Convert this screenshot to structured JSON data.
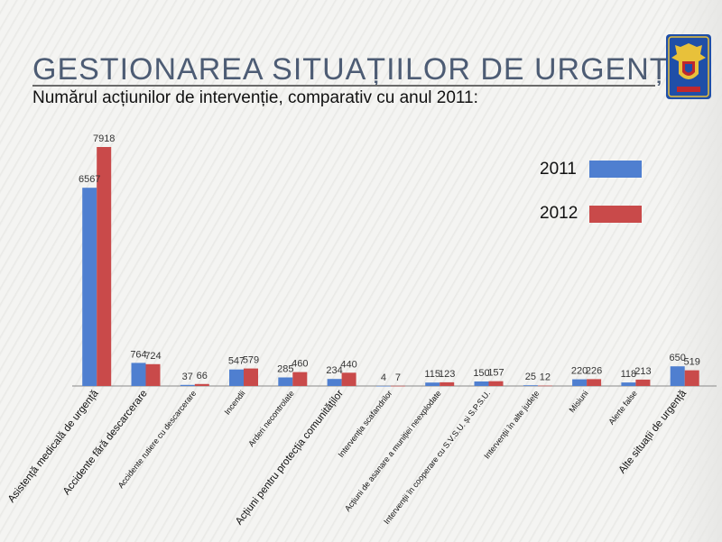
{
  "header": {
    "title": "GESTIONAREA SITUAȚIILOR DE URGENȚĂ",
    "subtitle": "Numărul acțiunilor de intervenție, comparativ cu anul 2011:"
  },
  "colors": {
    "series_2011": "#4f7fd0",
    "series_2012": "#c94a4a"
  },
  "crest_icon": "shield-crest-icon",
  "chart_data": {
    "type": "bar",
    "title": "",
    "xlabel": "",
    "ylabel": "",
    "ylim": [
      0,
      8000
    ],
    "grid": false,
    "legend_position": "top-right",
    "categories": [
      "Asistență medicală de urgență",
      "Accidente fără descarcerare",
      "Accidente rutiere cu descarcerare",
      "Incendii",
      "Arderi necontrolate",
      "Acțiuni pentru protecția comunităților",
      "Intervenția scafandrilor",
      "Acțiuni de asanare a muniției neexplodate",
      "Intervenții în cooperare cu S.V.S.U. și S.P.S.U.",
      "Intervenții în alte județe",
      "Misiuni",
      "Alerte false",
      "Alte situații de urgență"
    ],
    "series": [
      {
        "name": "2011",
        "values": [
          6567,
          764,
          37,
          547,
          285,
          234,
          4,
          115,
          150,
          25,
          220,
          118,
          650
        ]
      },
      {
        "name": "2012",
        "values": [
          7918,
          724,
          66,
          579,
          460,
          440,
          7,
          123,
          157,
          12,
          226,
          213,
          519
        ]
      }
    ]
  }
}
